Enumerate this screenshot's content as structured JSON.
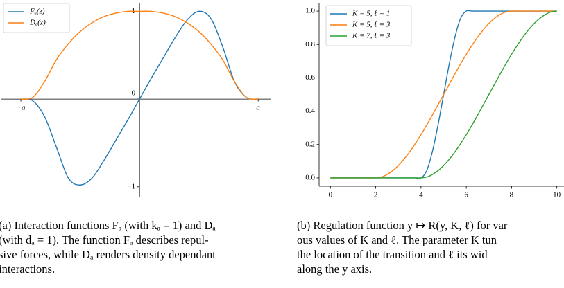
{
  "chart_data": [
    {
      "type": "line",
      "spines": "centered",
      "legend": "upper left",
      "x": [
        -1,
        -0.9,
        -0.8,
        -0.7,
        -0.6,
        -0.5,
        -0.4,
        -0.3,
        -0.2,
        -0.1,
        0,
        0.1,
        0.2,
        0.3,
        0.4,
        0.5,
        0.6,
        0.7,
        0.8,
        0.9,
        1
      ],
      "series": [
        {
          "name": "Fₐ(z)",
          "color": "#1f77b4",
          "values": [
            0,
            -0.02,
            -0.2,
            -0.55,
            -0.9,
            -0.98,
            -0.9,
            -0.7,
            -0.47,
            -0.24,
            0,
            0.24,
            0.47,
            0.7,
            0.9,
            1.0,
            0.92,
            0.6,
            0.2,
            0.02,
            0
          ]
        },
        {
          "name": "Dₐ(z)",
          "color": "#ff7f0e",
          "values": [
            0,
            0.02,
            0.2,
            0.45,
            0.63,
            0.77,
            0.87,
            0.94,
            0.98,
            1.0,
            1.0,
            1.0,
            0.98,
            0.94,
            0.87,
            0.77,
            0.63,
            0.45,
            0.2,
            0.02,
            0
          ]
        }
      ],
      "xlim": [
        -1.17,
        1.11
      ],
      "ylim": [
        -1.12,
        1.09
      ],
      "xticks": [
        {
          "value": -1,
          "label": "−a"
        },
        {
          "value": 1,
          "label": "a"
        }
      ],
      "yticks": [
        {
          "value": -1,
          "label": "−1"
        },
        0,
        1
      ]
    },
    {
      "type": "line",
      "spines": "left-bottom",
      "legend": "upper left",
      "x": [
        0,
        0.25,
        0.5,
        0.75,
        1,
        1.25,
        1.5,
        1.75,
        2,
        2.25,
        2.5,
        2.75,
        3,
        3.25,
        3.5,
        3.75,
        4,
        4.25,
        4.5,
        4.75,
        5,
        5.25,
        5.5,
        5.75,
        6,
        6.25,
        6.5,
        6.75,
        7,
        7.25,
        7.5,
        7.75,
        8,
        8.25,
        8.5,
        8.75,
        9,
        9.25,
        9.5,
        9.75,
        10
      ],
      "series": [
        {
          "name": "K = 5, ℓ = 1",
          "color": "#1f77b4",
          "values": [
            0,
            0,
            0,
            0,
            0,
            0,
            0,
            0,
            0,
            0,
            0,
            0,
            0,
            0,
            0,
            0,
            0,
            0.043,
            0.156,
            0.316,
            0.5,
            0.684,
            0.844,
            0.957,
            1,
            1,
            1,
            1,
            1,
            1,
            1,
            1,
            1,
            1,
            1,
            1,
            1,
            1,
            1,
            1,
            1
          ]
        },
        {
          "name": "K = 5, ℓ = 3",
          "color": "#ff7f0e",
          "values": [
            0,
            0,
            0,
            0,
            0,
            0,
            0,
            0,
            0,
            0.005,
            0.02,
            0.043,
            0.074,
            0.112,
            0.156,
            0.206,
            0.259,
            0.316,
            0.376,
            0.438,
            0.5,
            0.562,
            0.624,
            0.684,
            0.741,
            0.794,
            0.844,
            0.888,
            0.926,
            0.957,
            0.98,
            0.995,
            1,
            1,
            1,
            1,
            1,
            1,
            1,
            1,
            1
          ]
        },
        {
          "name": "K = 7, ℓ = 3",
          "color": "#2ca02c",
          "values": [
            0,
            0,
            0,
            0,
            0,
            0,
            0,
            0,
            0,
            0,
            0,
            0,
            0,
            0,
            0,
            0,
            0,
            0.005,
            0.02,
            0.043,
            0.074,
            0.112,
            0.156,
            0.206,
            0.259,
            0.316,
            0.376,
            0.438,
            0.5,
            0.562,
            0.624,
            0.684,
            0.741,
            0.794,
            0.844,
            0.888,
            0.926,
            0.957,
            0.98,
            0.995,
            1
          ]
        }
      ],
      "xlim": [
        -0.5,
        10.5
      ],
      "ylim": [
        -0.05,
        1.05
      ],
      "xticks": [
        0,
        2,
        4,
        6,
        8,
        10
      ],
      "yticks": [
        {
          "value": 0,
          "label": "0.0"
        },
        0.2,
        0.4,
        0.6,
        0.8,
        {
          "value": 1,
          "label": "1.0"
        }
      ]
    }
  ],
  "captions": [
    [
      "(a) Interaction functions Fₐ (with kₐ = 1) and Dₐ",
      "(with dₐ = 1). The function Fₐ describes repul-",
      "sive forces, while Dₐ renders density dependant",
      "interactions."
    ],
    [
      "(b) Regulation function y ↦ R(y, K, ℓ) for var",
      "ous values of K and ℓ. The parameter K tun",
      "the location of the transition and ℓ its wid",
      "along the y axis."
    ]
  ]
}
